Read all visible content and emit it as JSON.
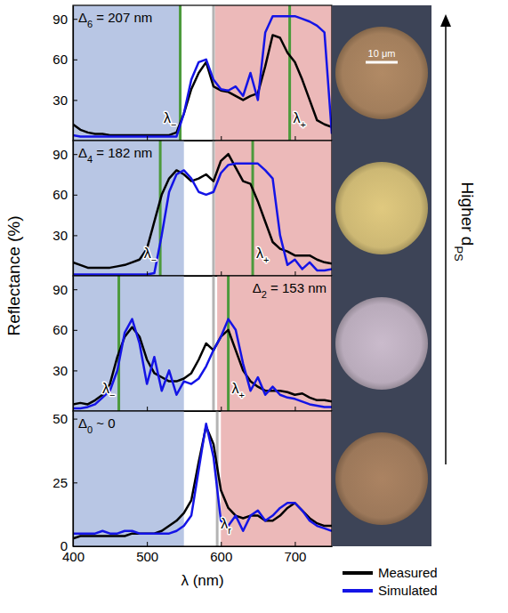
{
  "chart_data": [
    {
      "type": "line",
      "annotation": {
        "symbol": "Δ",
        "subscript": "6",
        "text": " = 207 nm"
      },
      "x": [
        400,
        410,
        420,
        430,
        440,
        450,
        460,
        470,
        480,
        490,
        500,
        510,
        520,
        530,
        540,
        550,
        560,
        570,
        580,
        590,
        600,
        610,
        620,
        630,
        640,
        650,
        660,
        670,
        680,
        690,
        700,
        710,
        720,
        730,
        740,
        750
      ],
      "xlim": [
        400,
        750
      ],
      "xticks": [
        400,
        500,
        600,
        700
      ],
      "ylim": [
        0,
        100
      ],
      "yticks": [
        30,
        60,
        90
      ],
      "tick_labels": "y",
      "shaded_regions": [
        {
          "range": [
            400,
            545
          ],
          "color": "#b8c6e4"
        },
        {
          "range": [
            592,
            750
          ],
          "color": "#ecb9b9"
        }
      ],
      "vlines": [
        {
          "x": 545,
          "color": "#4c9a3c",
          "label": {
            "symbol": "λ",
            "subscript": "−"
          }
        },
        {
          "x": 590,
          "color": "#b4b4b4"
        },
        {
          "x": 693,
          "color": "#4c9a3c",
          "label": {
            "symbol": "λ",
            "subscript": "+"
          }
        }
      ],
      "series": [
        {
          "color": "#000000",
          "values": [
            12,
            8,
            6,
            5,
            5,
            4,
            4,
            4,
            4,
            4,
            4,
            4,
            4,
            4,
            6,
            20,
            38,
            50,
            58,
            40,
            37,
            36,
            33,
            30,
            33,
            35,
            55,
            78,
            76,
            65,
            58,
            45,
            30,
            15,
            12,
            10
          ]
        },
        {
          "color": "#1414e6",
          "values": [
            4,
            3,
            3,
            3,
            3,
            3,
            3,
            3,
            3,
            3,
            3,
            3,
            3,
            3,
            3,
            20,
            45,
            58,
            60,
            45,
            38,
            37,
            40,
            33,
            50,
            30,
            80,
            92,
            92,
            92,
            92,
            90,
            88,
            85,
            80,
            5
          ]
        }
      ]
    },
    {
      "type": "line",
      "annotation": {
        "symbol": "Δ",
        "subscript": "4",
        "text": " = 182 nm"
      },
      "x": [
        400,
        410,
        420,
        430,
        440,
        450,
        460,
        470,
        480,
        490,
        500,
        510,
        520,
        530,
        540,
        550,
        560,
        570,
        580,
        590,
        600,
        610,
        620,
        630,
        640,
        650,
        660,
        670,
        680,
        690,
        700,
        710,
        720,
        730,
        740,
        750
      ],
      "xlim": [
        400,
        750
      ],
      "xticks": [
        400,
        500,
        600,
        700
      ],
      "ylim": [
        0,
        100
      ],
      "yticks": [
        30,
        60,
        90
      ],
      "tick_labels": "y",
      "shaded_regions": [
        {
          "range": [
            400,
            550
          ],
          "color": "#b8c6e4"
        },
        {
          "range": [
            592,
            750
          ],
          "color": "#ecb9b9"
        }
      ],
      "vlines": [
        {
          "x": 518,
          "color": "#4c9a3c",
          "label": {
            "symbol": "λ",
            "subscript": "−"
          }
        },
        {
          "x": 590,
          "color": "#b4b4b4"
        },
        {
          "x": 643,
          "color": "#4c9a3c",
          "label": {
            "symbol": "λ",
            "subscript": "+"
          }
        }
      ],
      "series": [
        {
          "color": "#000000",
          "values": [
            10,
            8,
            6,
            6,
            6,
            6,
            7,
            8,
            10,
            12,
            20,
            40,
            60,
            72,
            78,
            75,
            70,
            72,
            75,
            70,
            85,
            90,
            80,
            70,
            68,
            55,
            40,
            25,
            20,
            18,
            15,
            15,
            15,
            12,
            10,
            9
          ]
        },
        {
          "color": "#1414e6",
          "values": [
            1,
            1,
            1,
            1,
            1,
            1,
            1,
            1,
            1,
            1,
            1,
            2,
            30,
            62,
            75,
            78,
            72,
            62,
            60,
            62,
            76,
            82,
            83,
            83,
            83,
            83,
            78,
            72,
            30,
            8,
            12,
            5,
            10,
            4,
            4,
            5
          ]
        }
      ]
    },
    {
      "type": "line",
      "annotation": {
        "symbol": "Δ",
        "subscript": "2",
        "text": " = 153 nm"
      },
      "x": [
        400,
        410,
        420,
        430,
        440,
        450,
        460,
        470,
        480,
        490,
        500,
        510,
        520,
        530,
        540,
        550,
        560,
        570,
        580,
        590,
        600,
        610,
        620,
        630,
        640,
        650,
        660,
        670,
        680,
        690,
        700,
        710,
        720,
        730,
        740,
        750
      ],
      "xlim": [
        400,
        750
      ],
      "xticks": [
        400,
        500,
        600,
        700
      ],
      "ylim": [
        0,
        100
      ],
      "yticks": [
        30,
        60,
        90
      ],
      "tick_labels": "y",
      "shaded_regions": [
        {
          "range": [
            400,
            550
          ],
          "color": "#b8c6e4"
        },
        {
          "range": [
            595,
            750
          ],
          "color": "#ecb9b9"
        }
      ],
      "vlines": [
        {
          "x": 462,
          "color": "#4c9a3c",
          "label": {
            "symbol": "λ",
            "subscript": "−"
          }
        },
        {
          "x": 590,
          "color": "#b4b4b4"
        },
        {
          "x": 610,
          "color": "#4c9a3c",
          "label": {
            "symbol": "λ",
            "subscript": "+"
          }
        }
      ],
      "series": [
        {
          "color": "#000000",
          "values": [
            5,
            6,
            5,
            8,
            12,
            20,
            40,
            55,
            62,
            55,
            38,
            28,
            25,
            22,
            22,
            24,
            28,
            38,
            50,
            45,
            55,
            60,
            45,
            30,
            22,
            18,
            15,
            15,
            15,
            14,
            12,
            13,
            10,
            8,
            8,
            7
          ]
        },
        {
          "color": "#1414e6",
          "values": [
            2,
            2,
            3,
            5,
            10,
            15,
            30,
            58,
            68,
            50,
            20,
            40,
            15,
            30,
            12,
            22,
            20,
            24,
            33,
            45,
            55,
            68,
            60,
            35,
            15,
            25,
            12,
            18,
            12,
            10,
            9,
            7,
            5,
            4,
            3,
            3
          ]
        }
      ]
    },
    {
      "type": "line",
      "annotation": {
        "symbol": "Δ",
        "subscript": "0",
        "text": " ~ 0"
      },
      "x": [
        400,
        410,
        420,
        430,
        440,
        450,
        460,
        470,
        480,
        490,
        500,
        510,
        520,
        530,
        540,
        550,
        560,
        570,
        580,
        590,
        600,
        610,
        620,
        630,
        640,
        650,
        660,
        670,
        680,
        690,
        700,
        710,
        720,
        730,
        740,
        750
      ],
      "xlim": [
        400,
        750
      ],
      "xticks": [
        400,
        500,
        600,
        700
      ],
      "ylim": [
        0,
        53
      ],
      "yticks": [
        0,
        25,
        50
      ],
      "x_label": "λ (nm)",
      "legend": "bottom-right",
      "shaded_regions": [
        {
          "range": [
            400,
            550
          ],
          "color": "#b8c6e4"
        },
        {
          "range": [
            600,
            750
          ],
          "color": "#ecb9b9"
        }
      ],
      "vlines": [
        {
          "x": 595,
          "color": "#b4b4b4",
          "label": {
            "symbol": "λ",
            "subscript": "r"
          }
        }
      ],
      "series": [
        {
          "name": "Measured",
          "color": "#000000",
          "values": [
            3,
            4,
            4,
            4,
            4,
            4,
            4,
            4,
            5,
            5,
            5,
            5,
            6,
            8,
            10,
            13,
            18,
            33,
            47,
            40,
            22,
            15,
            12,
            11,
            12,
            12,
            10,
            10,
            12,
            15,
            17,
            14,
            11,
            9,
            8,
            8
          ]
        },
        {
          "name": "Simulated",
          "color": "#1414e6",
          "values": [
            5,
            5,
            5,
            5,
            6,
            5,
            5,
            6,
            6,
            5,
            5,
            5,
            5,
            5,
            6,
            8,
            12,
            30,
            48,
            35,
            10,
            8,
            12,
            6,
            12,
            14,
            10,
            12,
            15,
            17,
            17,
            14,
            10,
            8,
            7,
            6
          ]
        }
      ]
    }
  ],
  "figure": {
    "y_label": "Reflectance (%)",
    "scale_bar": "10 μm",
    "side_label": {
      "text": "Higher d",
      "subscript": "PS"
    }
  }
}
